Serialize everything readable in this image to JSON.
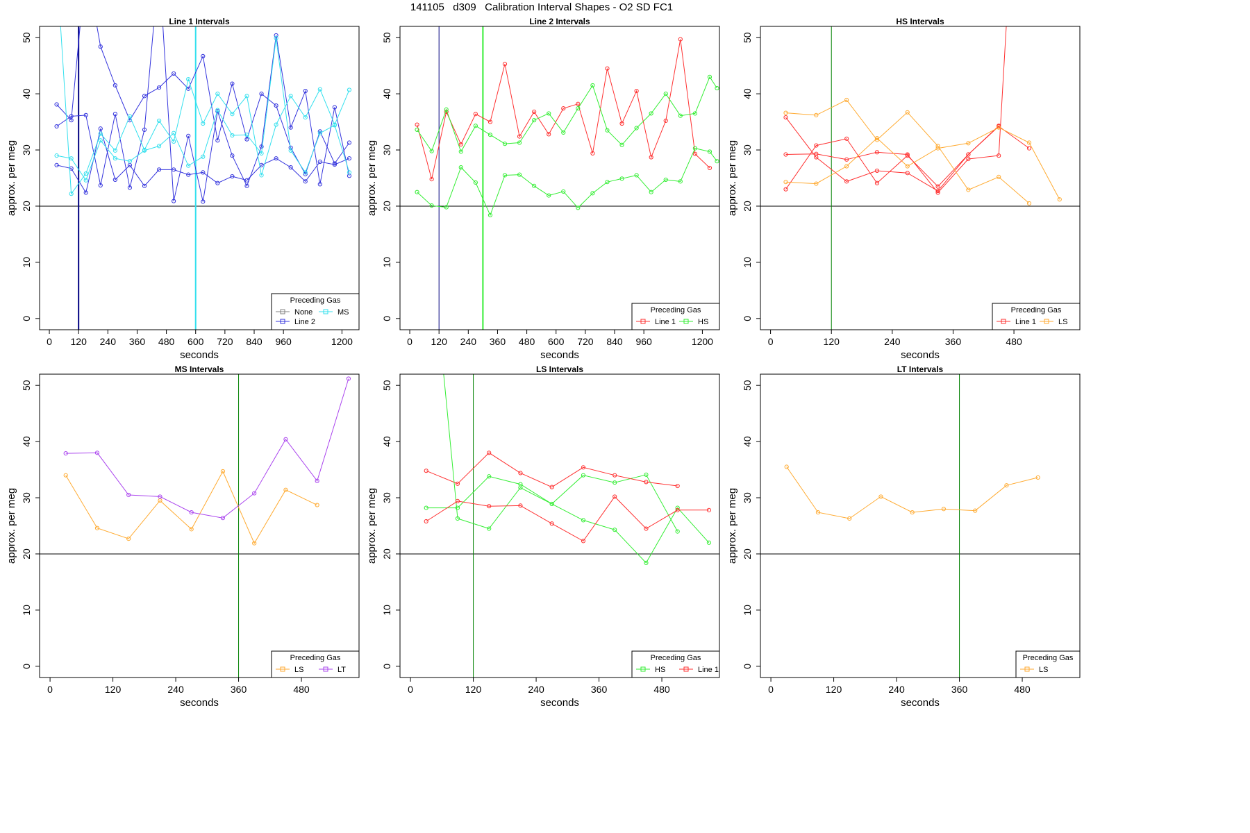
{
  "title": "141105   d309   Calibration Interval Shapes - O2 SD FC1",
  "colors": {
    "None": "#808080",
    "Line 1": "#ff3030",
    "Line 2": "#3333dd",
    "HS": "#33ee33",
    "MS": "#33e0ee",
    "LS": "#ffaa30",
    "LT": "#aa44ee",
    "dark": "#000080",
    "green": "#008000"
  },
  "chart_data": [
    {
      "type": "line",
      "title": "Line 1 Intervals",
      "xlabel": "seconds",
      "ylabel": "approx. per meg",
      "xlim": [
        -40,
        1270
      ],
      "ylim": [
        -2,
        52
      ],
      "xticks": [
        0,
        120,
        240,
        360,
        480,
        600,
        720,
        840,
        960,
        1200
      ],
      "yticks": [
        0,
        10,
        20,
        30,
        40,
        50
      ],
      "hline": 20,
      "vlines": [
        {
          "x": 120,
          "color": "dark",
          "width": 2
        },
        {
          "x": 600,
          "color": "MS",
          "width": 2
        }
      ],
      "legend": {
        "title": "Preceding Gas",
        "position": "bottom-right",
        "entries": [
          "None",
          "Line 2",
          "MS"
        ]
      },
      "series": [
        {
          "name": "Line 2",
          "x": [
            30,
            90,
            150,
            210,
            270,
            330,
            390,
            450,
            510,
            570,
            630,
            690,
            750,
            810,
            870,
            930,
            990,
            1050,
            1110,
            1170,
            1230
          ],
          "y": [
            38.1,
            35.3,
            63,
            48.4,
            41.5,
            35.3,
            39.6,
            41.1,
            43.6,
            40.9,
            46.7,
            31.7,
            41.8,
            31.9,
            40.0,
            37.9,
            30.4,
            25.7,
            33.3,
            27.6,
            31.3
          ]
        },
        {
          "name": "Line 2",
          "x": [
            30,
            90,
            150,
            210,
            270,
            330,
            390,
            450,
            510,
            570,
            630,
            690,
            750,
            810,
            870,
            930,
            990,
            1050,
            1110,
            1170,
            1230
          ],
          "y": [
            34.2,
            36.0,
            36.2,
            23.7,
            36.4,
            23.3,
            33.6,
            63,
            20.9,
            32.5,
            20.8,
            36.9,
            29.0,
            23.6,
            30.6,
            50.4,
            34.0,
            40.5,
            23.9,
            37.6,
            25.4
          ]
        },
        {
          "name": "Line 2",
          "x": [
            30,
            90,
            150,
            210,
            270,
            330,
            390,
            450,
            510,
            570,
            630,
            690,
            750,
            810,
            870,
            930,
            990,
            1050,
            1110,
            1170,
            1230
          ],
          "y": [
            27.3,
            26.7,
            22.4,
            33.8,
            24.7,
            27.3,
            23.6,
            26.5,
            26.5,
            25.6,
            26.0,
            24.1,
            25.3,
            24.6,
            27.3,
            28.5,
            26.9,
            24.4,
            27.9,
            27.4,
            28.5
          ]
        },
        {
          "name": "MS",
          "x": [
            30,
            90,
            150,
            210,
            270,
            330,
            390,
            450,
            510,
            570,
            630,
            690,
            750,
            810,
            870,
            930,
            990,
            1050,
            1110,
            1170,
            1230
          ],
          "y": [
            63,
            22.2,
            25.8,
            32.9,
            29.9,
            36.0,
            30.0,
            35.2,
            31.5,
            42.6,
            34.7,
            40.0,
            36.4,
            39.6,
            25.5,
            34.5,
            39.6,
            35.8,
            40.8,
            34.5,
            40.7
          ]
        },
        {
          "name": "MS",
          "x": [
            30,
            90,
            150,
            210,
            270,
            330,
            390,
            450,
            510,
            570,
            630,
            690,
            750,
            810,
            870,
            930,
            990,
            1050,
            1110,
            1170,
            1230
          ],
          "y": [
            29.0,
            28.5,
            24.6,
            31.7,
            28.5,
            28.0,
            29.9,
            30.7,
            33.0,
            27.2,
            28.8,
            37.1,
            32.6,
            32.7,
            29.4,
            49.9,
            29.9,
            26.0,
            33.0,
            34.4,
            26.0
          ]
        }
      ]
    },
    {
      "type": "line",
      "title": "Line 2 Intervals",
      "xlabel": "seconds",
      "ylabel": "approx. per meg",
      "xlim": [
        -40,
        1270
      ],
      "ylim": [
        -2,
        52
      ],
      "xticks": [
        0,
        120,
        240,
        360,
        480,
        600,
        720,
        840,
        960,
        1200
      ],
      "yticks": [
        0,
        10,
        20,
        30,
        40,
        50
      ],
      "hline": 20,
      "vlines": [
        {
          "x": 120,
          "color": "dark",
          "width": 1
        },
        {
          "x": 300,
          "color": "HS",
          "width": 2
        }
      ],
      "legend": {
        "title": "Preceding Gas",
        "position": "bottom-right",
        "entries": [
          "Line 1",
          "HS"
        ]
      },
      "series": [
        {
          "name": "Line 1",
          "x": [
            30,
            90,
            150,
            210,
            270,
            330,
            390,
            450,
            510,
            570,
            630,
            690,
            750,
            810,
            870,
            930,
            990,
            1050,
            1110,
            1170,
            1230
          ],
          "y": [
            34.5,
            24.8,
            36.8,
            31.0,
            36.4,
            35.0,
            45.3,
            32.4,
            36.8,
            32.8,
            37.4,
            38.2,
            29.4,
            44.5,
            34.7,
            40.5,
            28.7,
            35.2,
            49.7,
            29.3,
            26.8
          ]
        },
        {
          "name": "HS",
          "x": [
            30,
            90,
            150,
            210,
            270,
            330,
            390,
            450,
            510,
            570,
            630,
            690,
            750,
            810,
            870,
            930,
            990,
            1050,
            1110,
            1170,
            1230,
            1260
          ],
          "y": [
            33.6,
            29.8,
            37.2,
            29.7,
            34.3,
            32.7,
            31.1,
            31.3,
            35.3,
            36.5,
            33.1,
            37.4,
            41.5,
            33.5,
            30.9,
            33.9,
            36.5,
            40.0,
            36.1,
            36.5,
            43.0,
            41.0
          ]
        },
        {
          "name": "HS",
          "x": [
            30,
            90,
            150,
            210,
            270,
            330,
            390,
            450,
            510,
            570,
            630,
            690,
            750,
            810,
            870,
            930,
            990,
            1050,
            1110,
            1170,
            1230,
            1260
          ],
          "y": [
            22.5,
            20.1,
            19.8,
            26.9,
            24.2,
            18.4,
            25.5,
            25.6,
            23.6,
            21.9,
            22.6,
            19.7,
            22.3,
            24.3,
            24.9,
            25.5,
            22.5,
            24.7,
            24.4,
            30.3,
            29.7,
            28.0
          ]
        }
      ]
    },
    {
      "type": "line",
      "title": "HS Intervals",
      "xlabel": "seconds",
      "ylabel": "approx. per meg",
      "xlim": [
        -20,
        610
      ],
      "ylim": [
        -2,
        52
      ],
      "xticks": [
        0,
        120,
        240,
        360,
        480
      ],
      "yticks": [
        0,
        10,
        20,
        30,
        40,
        50
      ],
      "hline": 20,
      "vlines": [
        {
          "x": 120,
          "color": "green",
          "width": 1
        }
      ],
      "legend": {
        "title": "Preceding Gas",
        "position": "bottom-right",
        "entries": [
          "Line 1",
          "LS"
        ]
      },
      "series": [
        {
          "name": "Line 1",
          "x": [
            30,
            90,
            150,
            210,
            270,
            330,
            390,
            450,
            510
          ],
          "y": [
            35.8,
            28.7,
            24.4,
            26.3,
            25.9,
            22.7,
            29.2,
            34.2,
            30.3
          ]
        },
        {
          "name": "Line 1",
          "x": [
            30,
            90,
            150,
            210,
            270,
            330,
            390,
            450,
            470
          ],
          "y": [
            29.2,
            29.3,
            28.3,
            29.6,
            29.2,
            22.4,
            28.4,
            29.0,
            60
          ]
        },
        {
          "name": "Line 1",
          "x": [
            30,
            90,
            150,
            210,
            270,
            330,
            390,
            450
          ],
          "y": [
            23.0,
            30.8,
            32.0,
            24.1,
            29.0,
            23.5,
            29.2,
            34.3
          ]
        },
        {
          "name": "LS",
          "x": [
            30,
            90,
            150,
            210,
            270,
            330,
            390,
            450,
            510
          ],
          "y": [
            36.6,
            36.2,
            38.9,
            31.8,
            36.7,
            30.7,
            22.9,
            25.2,
            20.5
          ]
        },
        {
          "name": "LS",
          "x": [
            30,
            90,
            150,
            210,
            270,
            330,
            390,
            450,
            510,
            570
          ],
          "y": [
            24.3,
            24.0,
            27.1,
            32.1,
            27.1,
            30.3,
            31.2,
            34.0,
            31.3,
            21.2
          ]
        }
      ]
    },
    {
      "type": "line",
      "title": "MS Intervals",
      "xlabel": "seconds",
      "ylabel": "approx. per meg",
      "xlim": [
        -20,
        590
      ],
      "ylim": [
        -2,
        52
      ],
      "xticks": [
        0,
        120,
        240,
        360,
        480
      ],
      "yticks": [
        0,
        10,
        20,
        30,
        40,
        50
      ],
      "hline": 20,
      "vlines": [
        {
          "x": 360,
          "color": "green",
          "width": 1
        }
      ],
      "legend": {
        "title": "Preceding Gas",
        "position": "bottom-right",
        "entries": [
          "LS",
          "LT"
        ]
      },
      "series": [
        {
          "name": "LS",
          "x": [
            30,
            90,
            150,
            210,
            270,
            330,
            390,
            450,
            510
          ],
          "y": [
            34.0,
            24.6,
            22.7,
            29.5,
            24.4,
            34.7,
            21.9,
            31.4,
            28.7
          ]
        },
        {
          "name": "LT",
          "x": [
            30,
            90,
            150,
            210,
            270,
            330,
            390,
            450,
            510,
            570
          ],
          "y": [
            37.9,
            38.0,
            30.5,
            30.2,
            27.4,
            26.4,
            30.8,
            40.4,
            33.0,
            51.2
          ]
        }
      ]
    },
    {
      "type": "line",
      "title": "LS Intervals",
      "xlabel": "seconds",
      "ylabel": "approx. per meg",
      "xlim": [
        -20,
        590
      ],
      "ylim": [
        -2,
        52
      ],
      "xticks": [
        0,
        120,
        240,
        360,
        480
      ],
      "yticks": [
        0,
        10,
        20,
        30,
        40,
        50
      ],
      "hline": 20,
      "vlines": [
        {
          "x": 120,
          "color": "green",
          "width": 1
        }
      ],
      "legend": {
        "title": "Preceding Gas",
        "position": "bottom-right",
        "entries": [
          "HS",
          "Line 1"
        ]
      },
      "series": [
        {
          "name": "HS",
          "x": [
            55,
            90,
            150,
            210,
            270,
            330,
            390,
            450,
            510,
            570
          ],
          "y": [
            60,
            26.3,
            24.5,
            31.8,
            28.9,
            26.0,
            24.3,
            18.4,
            28.2,
            22.0
          ]
        },
        {
          "name": "HS",
          "x": [
            30,
            90,
            150,
            210,
            270,
            330,
            390,
            450,
            510
          ],
          "y": [
            28.2,
            28.2,
            33.8,
            32.4,
            28.9,
            34.0,
            32.7,
            34.1,
            24.0
          ]
        },
        {
          "name": "Line 1",
          "x": [
            30,
            90,
            150,
            210,
            270,
            330,
            390,
            450,
            510
          ],
          "y": [
            34.8,
            32.5,
            38.0,
            34.4,
            31.9,
            35.4,
            34.0,
            32.8,
            32.1
          ]
        },
        {
          "name": "Line 1",
          "x": [
            30,
            90,
            150,
            210,
            270,
            330,
            390,
            450,
            510,
            570
          ],
          "y": [
            25.8,
            29.4,
            28.5,
            28.6,
            25.4,
            22.3,
            30.2,
            24.5,
            27.8,
            27.8
          ]
        }
      ]
    },
    {
      "type": "line",
      "title": "LT Intervals",
      "xlabel": "seconds",
      "ylabel": "approx. per meg",
      "xlim": [
        -20,
        590
      ],
      "ylim": [
        -2,
        52
      ],
      "xticks": [
        0,
        120,
        240,
        360,
        480
      ],
      "yticks": [
        0,
        10,
        20,
        30,
        40,
        50
      ],
      "hline": 20,
      "vlines": [
        {
          "x": 360,
          "color": "green",
          "width": 1
        }
      ],
      "legend": {
        "title": "Preceding Gas",
        "position": "bottom-right",
        "entries": [
          "LS"
        ]
      },
      "series": [
        {
          "name": "LS",
          "x": [
            30,
            90,
            150,
            210,
            270,
            330,
            390,
            450,
            510
          ],
          "y": [
            35.5,
            27.4,
            26.3,
            30.2,
            27.4,
            28.0,
            27.7,
            32.2,
            33.6
          ]
        }
      ]
    }
  ]
}
